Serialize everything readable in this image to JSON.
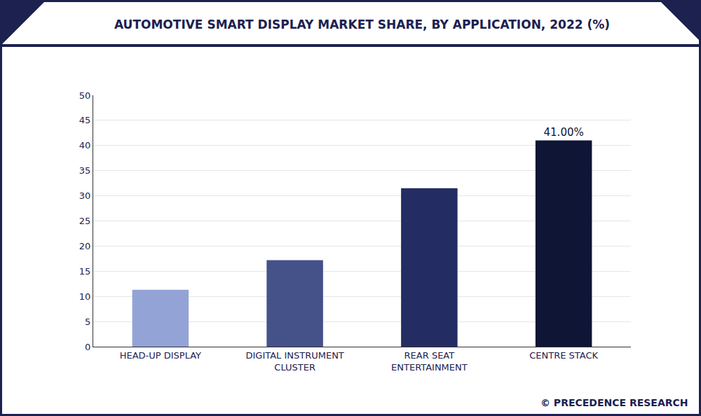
{
  "chart_data": {
    "type": "bar",
    "title": "AUTOMOTIVE SMART DISPLAY MARKET SHARE, BY APPLICATION, 2022 (%)",
    "categories": [
      "HEAD-UP DISPLAY",
      "DIGITAL INSTRUMENT CLUSTER",
      "REAR SEAT ENTERTAINMENT",
      "CENTRE STACK"
    ],
    "values": [
      11.3,
      17.2,
      31.5,
      41
    ],
    "value_labels": [
      null,
      null,
      null,
      "41.00%"
    ],
    "colors": [
      "#94a3d6",
      "#455189",
      "#232d63",
      "#0e1535"
    ],
    "ylim": [
      0,
      50
    ],
    "yticks": [
      0,
      5,
      10,
      15,
      20,
      25,
      30,
      35,
      40,
      45,
      50
    ],
    "grid": true,
    "source": "© PRECEDENCE RESEARCH"
  }
}
